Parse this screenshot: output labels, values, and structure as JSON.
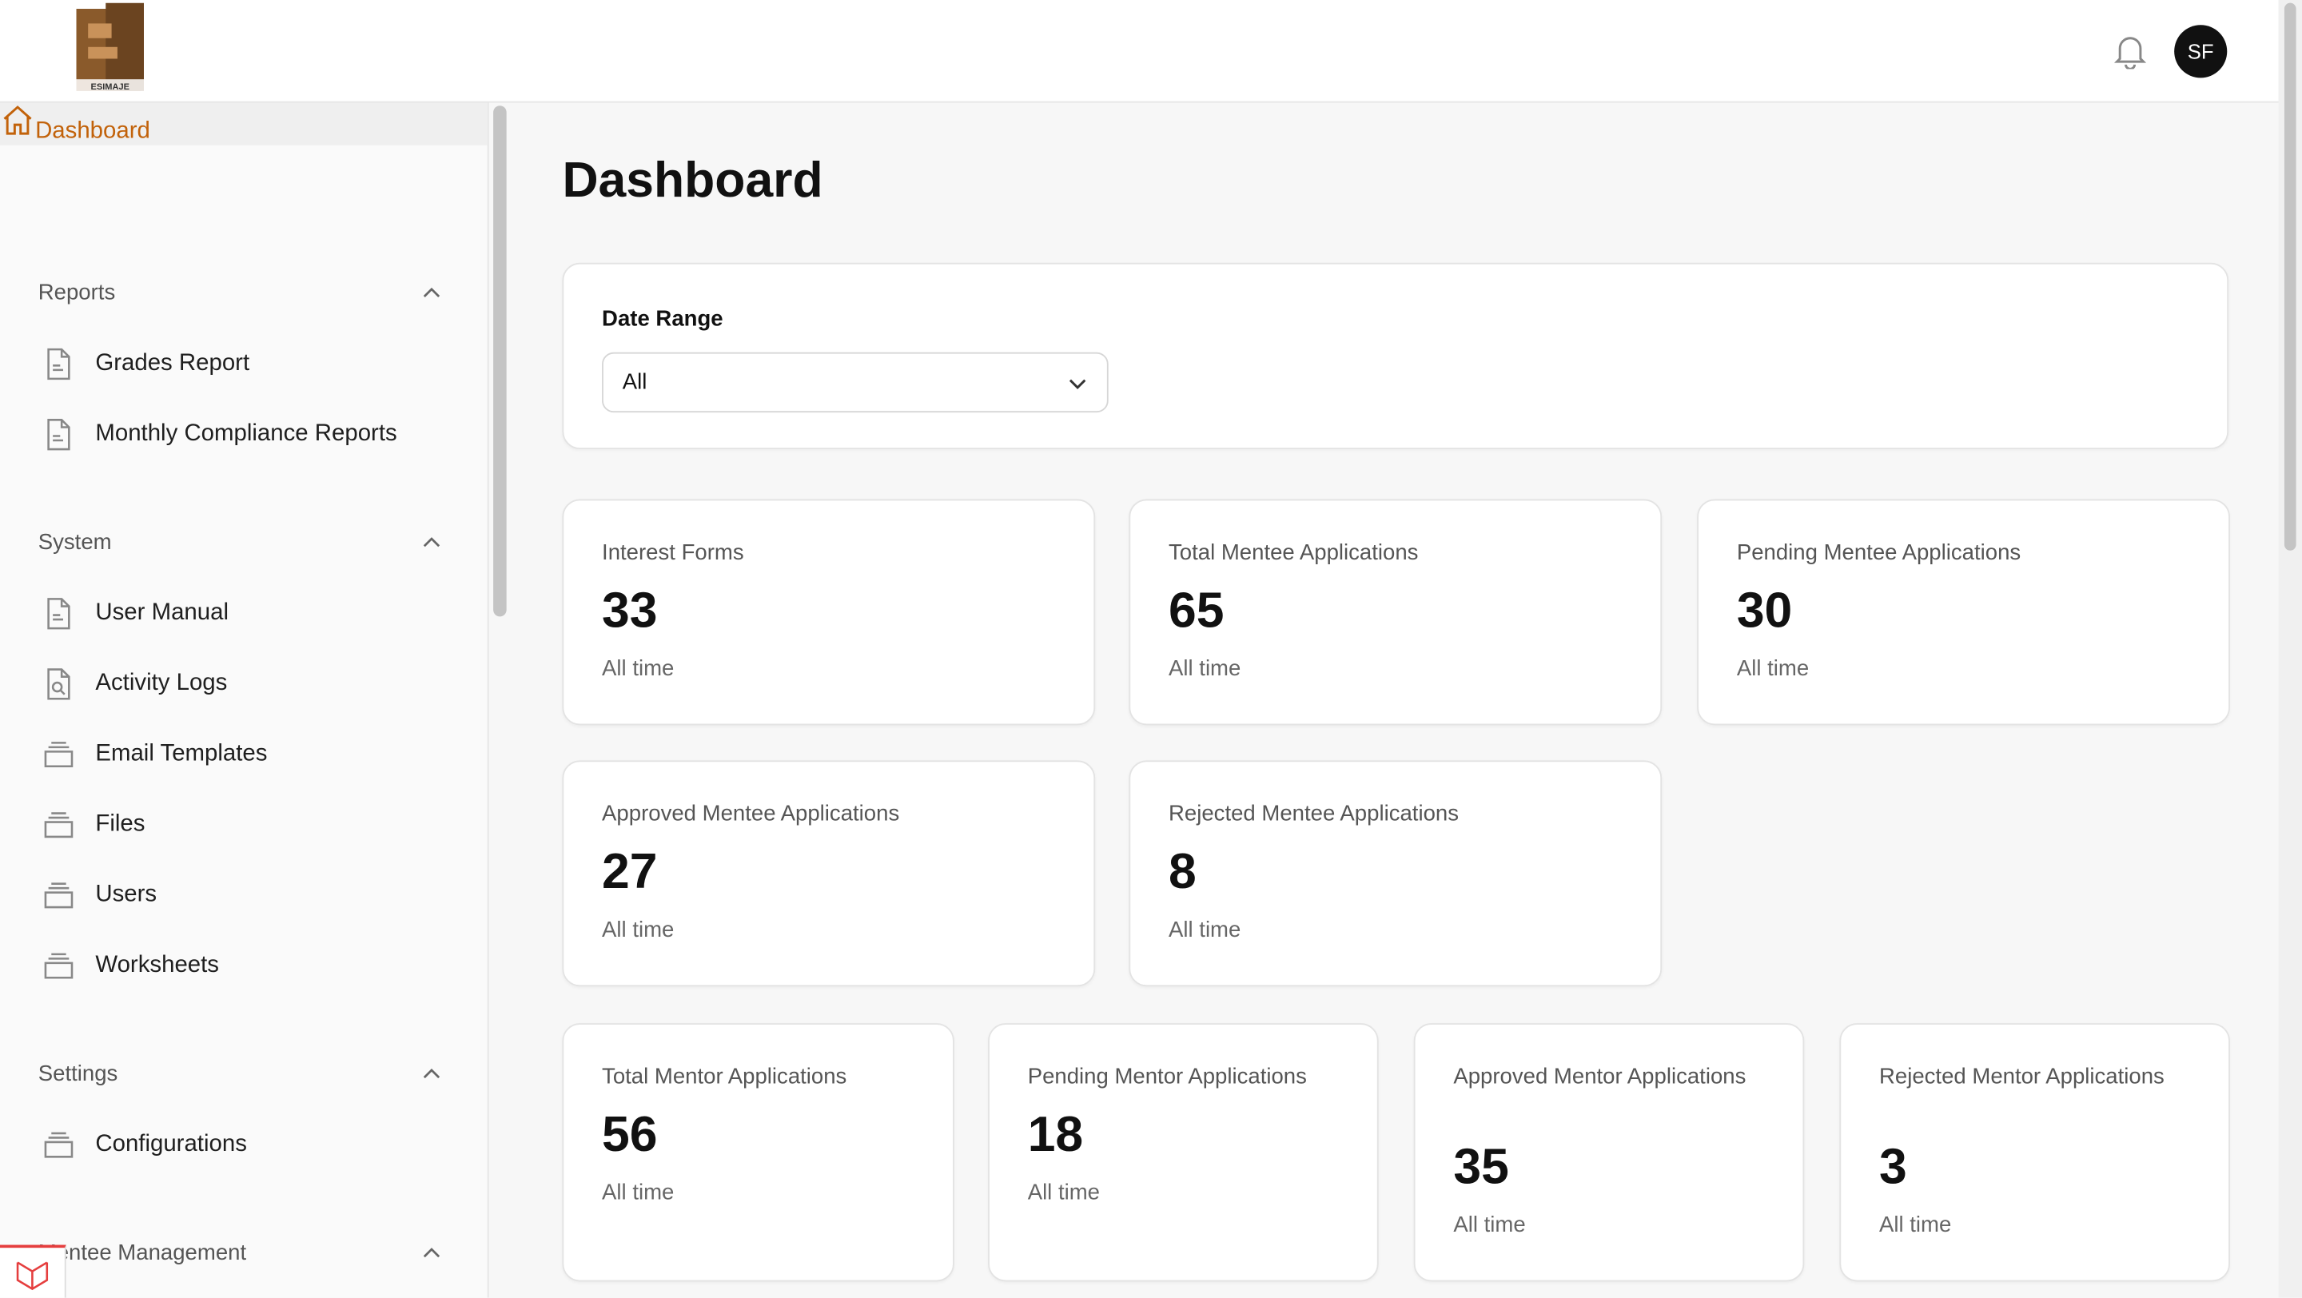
{
  "header": {
    "avatar": "SF"
  },
  "sidebar": {
    "active": "Dashboard",
    "groups": [
      {
        "label": "Reports",
        "items": [
          "Grades Report",
          "Monthly Compliance Reports"
        ]
      },
      {
        "label": "System",
        "items": [
          "User Manual",
          "Activity Logs",
          "Email Templates",
          "Files",
          "Users",
          "Worksheets"
        ]
      },
      {
        "label": "Settings",
        "items": [
          "Configurations"
        ]
      },
      {
        "label": "Mentee Management",
        "items": []
      }
    ]
  },
  "main": {
    "title": "Dashboard",
    "filter": {
      "label": "Date Range",
      "value": "All"
    },
    "stats": [
      {
        "label": "Interest Forms",
        "value": 33,
        "description": "All time"
      },
      {
        "label": "Total Mentee Applications",
        "value": 65,
        "description": "All time"
      },
      {
        "label": "Pending Mentee Applications",
        "value": 30,
        "description": "All time"
      },
      {
        "label": "Approved Mentee Applications",
        "value": 27,
        "description": "All time"
      },
      {
        "label": "Rejected Mentee Applications",
        "value": 8,
        "description": "All time"
      },
      {
        "label": "Total Mentor Applications",
        "value": 56,
        "description": "All time"
      },
      {
        "label": "Pending Mentor Applications",
        "value": 18,
        "description": "All time"
      },
      {
        "label": "Approved Mentor Applications",
        "value": 35,
        "description": "All time"
      },
      {
        "label": "Rejected Mentor Applications",
        "value": 3,
        "description": "All time"
      }
    ]
  }
}
